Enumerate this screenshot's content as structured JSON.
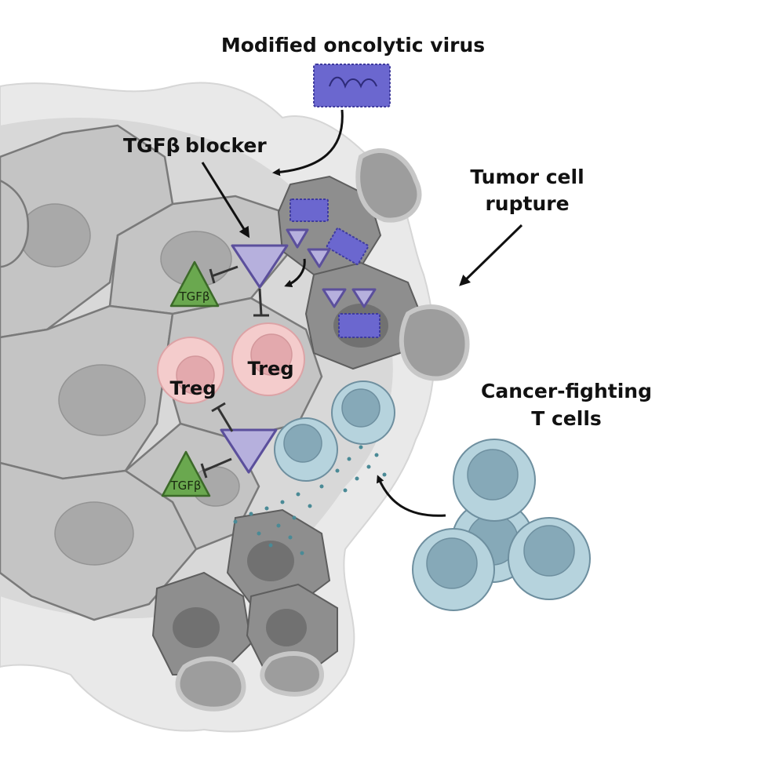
{
  "labels": {
    "virus": "Modified oncolytic virus",
    "blocker_line1": "TGFβ",
    "blocker_line2": "blocker",
    "rupture_line1": "Tumor cell",
    "rupture_line2": "rupture",
    "tcells_line1": "Cancer-fighting",
    "tcells_line2": "T cells",
    "treg": "Treg",
    "tgfb": "TGFβ"
  },
  "colors": {
    "virus": "#6b67cf",
    "blocker": "#b6b0dd",
    "tgfb": "#6aa84f",
    "treg": "#f4cccc",
    "tcell": "#b6d3dd",
    "tumor": "#c4c4c4"
  }
}
